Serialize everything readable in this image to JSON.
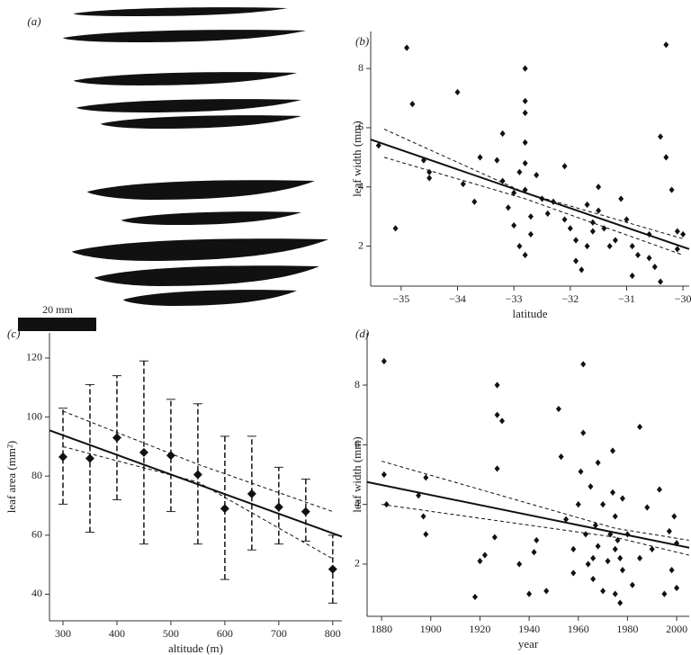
{
  "panel_a": {
    "label": "(a)",
    "scale_label": "20 mm"
  },
  "chart_data": [
    {
      "type": "scatter",
      "label": "(b)",
      "x_label": "latitude",
      "y_label": "leaf width (mm)",
      "xlim": [
        -35.54,
        -29.89
      ],
      "ylim": [
        0.65,
        9.25
      ],
      "xticks": [
        {
          "value": -35,
          "label": "−35"
        },
        {
          "value": -34,
          "label": "−34"
        },
        {
          "value": -33,
          "label": "−33"
        },
        {
          "value": -32,
          "label": "−32"
        },
        {
          "value": -31,
          "label": "−31"
        },
        {
          "value": -30,
          "label": "−30"
        }
      ],
      "yticks": [
        2,
        4,
        6,
        8
      ],
      "x": [
        -35.4,
        -35.1,
        -34.9,
        -34.8,
        -34.6,
        -34.5,
        -34.5,
        -34.0,
        -33.9,
        -33.7,
        -33.6,
        -33.3,
        -33.2,
        -33.2,
        -33.1,
        -33.0,
        -33.0,
        -32.9,
        -32.8,
        -32.8,
        -32.8,
        -32.8,
        -32.8,
        -32.8,
        -32.7,
        -32.7,
        -32.8,
        -32.6,
        -32.5,
        -32.4,
        -32.3,
        -32.1,
        -32.1,
        -32.0,
        -31.9,
        -31.9,
        -31.8,
        -31.7,
        -31.6,
        -31.6,
        -31.5,
        -31.5,
        -31.4,
        -31.3,
        -31.2,
        -31.1,
        -31.0,
        -30.9,
        -30.9,
        -30.8,
        -30.6,
        -30.5,
        -30.4,
        -30.4,
        -30.3,
        -30.3,
        -30.2,
        -30.1,
        -30.1,
        -30.0,
        -32.9,
        -31.7,
        -30.6
      ],
      "y": [
        5.4,
        2.6,
        8.7,
        6.8,
        4.9,
        4.3,
        4.5,
        7.2,
        4.1,
        3.5,
        5.0,
        4.9,
        5.8,
        4.2,
        3.3,
        2.7,
        3.8,
        4.5,
        8.0,
        6.9,
        6.5,
        5.5,
        4.8,
        3.9,
        3.0,
        2.4,
        1.7,
        4.4,
        3.6,
        3.1,
        3.5,
        2.9,
        4.7,
        2.6,
        2.2,
        1.5,
        1.2,
        3.4,
        2.8,
        2.5,
        4.0,
        3.2,
        2.6,
        2.0,
        2.2,
        3.6,
        2.9,
        2.0,
        1.0,
        1.7,
        2.4,
        1.3,
        5.7,
        0.8,
        5.0,
        8.8,
        3.9,
        2.5,
        1.9,
        2.4,
        2.0,
        2.0,
        1.6
      ],
      "fit": {
        "x": [
          -35.54,
          -29.89
        ],
        "y": [
          5.6,
          1.9
        ]
      },
      "ci_upper": {
        "x": [
          -35.3,
          -32.8,
          -30.0
        ],
        "y": [
          5.95,
          3.8,
          2.25
        ]
      },
      "ci_lower": {
        "x": [
          -35.3,
          -32.8,
          -30.0
        ],
        "y": [
          5.0,
          3.6,
          1.7
        ]
      }
    },
    {
      "type": "errorbar",
      "label": "(c)",
      "x_label": "altitude (m)",
      "y_label": "leaf area (mm²)",
      "xlim": [
        275,
        817
      ],
      "ylim": [
        31,
        128.5
      ],
      "xticks": [
        300,
        400,
        500,
        600,
        700,
        800
      ],
      "yticks": [
        40,
        60,
        80,
        100,
        120
      ],
      "x": [
        300,
        350,
        400,
        450,
        500,
        550,
        600,
        650,
        700,
        750,
        800
      ],
      "y": [
        86.5,
        86,
        93,
        88,
        87,
        80.5,
        69,
        74,
        69.5,
        68,
        48.5
      ],
      "error_low": [
        70.5,
        61,
        72,
        57,
        68,
        57,
        45,
        55,
        57,
        58,
        37
      ],
      "error_high": [
        103,
        111,
        114,
        119,
        106,
        104.5,
        93.5,
        93.5,
        83,
        79,
        60
      ],
      "fit": {
        "x": [
          275,
          817
        ],
        "y": [
          95.5,
          59.5
        ]
      },
      "ci_upper": {
        "x": [
          300,
          550,
          800
        ],
        "y": [
          102,
          84,
          68
        ]
      },
      "ci_lower": {
        "x": [
          300,
          550,
          800
        ],
        "y": [
          90,
          78,
          52
        ]
      }
    },
    {
      "type": "scatter",
      "label": "(d)",
      "x_label": "year",
      "y_label": "leaf width (mm)",
      "xlim": [
        1874.1,
        2005.1
      ],
      "ylim": [
        0.25,
        9.75
      ],
      "xticks": [
        1880,
        1900,
        1920,
        1940,
        1960,
        1980,
        2000
      ],
      "yticks": [
        2,
        4,
        6,
        8
      ],
      "x": [
        1881,
        1881,
        1882,
        1895,
        1897,
        1898,
        1898,
        1918,
        1920,
        1922,
        1926,
        1927,
        1927,
        1927,
        1929,
        1936,
        1940,
        1942,
        1943,
        1947,
        1952,
        1953,
        1955,
        1958,
        1958,
        1960,
        1961,
        1962,
        1962,
        1963,
        1964,
        1965,
        1966,
        1967,
        1968,
        1968,
        1970,
        1970,
        1972,
        1973,
        1974,
        1974,
        1975,
        1975,
        1976,
        1977,
        1977,
        1978,
        1980,
        1982,
        1985,
        1985,
        1988,
        1990,
        1993,
        1995,
        1997,
        1998,
        1999,
        2000,
        2000,
        1966,
        1975,
        1978
      ],
      "y": [
        8.8,
        5.0,
        4.0,
        4.3,
        3.6,
        3.0,
        4.9,
        0.9,
        2.1,
        2.3,
        2.9,
        8.0,
        7.0,
        5.2,
        6.8,
        2.0,
        1.0,
        2.4,
        2.8,
        1.1,
        7.2,
        5.6,
        3.5,
        2.5,
        1.7,
        4.0,
        5.1,
        8.7,
        6.4,
        3.0,
        2.0,
        4.6,
        1.5,
        3.3,
        2.6,
        5.4,
        4.0,
        1.1,
        2.1,
        3.0,
        5.8,
        4.4,
        1.0,
        3.6,
        2.8,
        2.2,
        0.7,
        4.2,
        3.0,
        1.3,
        6.6,
        2.2,
        3.9,
        2.5,
        4.5,
        1.0,
        3.1,
        1.8,
        3.6,
        2.7,
        1.2,
        2.2,
        2.5,
        1.8
      ],
      "fit": {
        "x": [
          1874.1,
          2005.1
        ],
        "y": [
          4.75,
          2.55
        ]
      },
      "ci_upper": {
        "x": [
          1880,
          1975,
          2005
        ],
        "y": [
          5.45,
          3.2,
          2.8
        ]
      },
      "ci_lower": {
        "x": [
          1880,
          1975,
          2005
        ],
        "y": [
          4.0,
          2.9,
          2.3
        ]
      }
    }
  ]
}
